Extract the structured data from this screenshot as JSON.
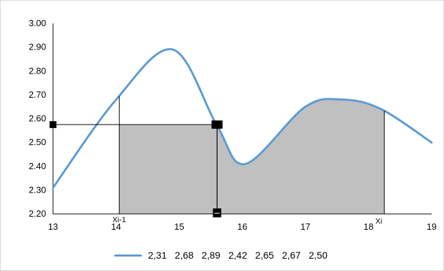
{
  "chart_data": {
    "type": "line",
    "title": "",
    "xlabel": "",
    "ylabel": "",
    "xlim": [
      13,
      19
    ],
    "ylim": [
      2.2,
      3.0
    ],
    "x_ticks": [
      "13",
      "14",
      "15",
      "16",
      "17",
      "18",
      "19"
    ],
    "y_ticks": [
      "2.20",
      "2.30",
      "2.40",
      "2.50",
      "2.60",
      "2.70",
      "2.80",
      "2.90",
      "3.00"
    ],
    "grid": false,
    "legend_position": "bottom",
    "series": [
      {
        "name": "2,31   2,68   2,89   2,42   2,65   2,67   2,50",
        "color": "#5b9bd5",
        "smooth": true,
        "x": [
          13,
          14,
          14.9,
          15.6,
          16.05,
          17,
          17.6,
          18.2,
          19
        ],
        "y": [
          2.31,
          2.68,
          2.89,
          2.57,
          2.41,
          2.65,
          2.68,
          2.64,
          2.5
        ]
      }
    ],
    "shaded_region": {
      "from_x": 14.05,
      "to_x": 18.25,
      "color": "#c0c0c0"
    },
    "annotations": {
      "x_prev": {
        "label": "Xi-1",
        "x": 14.05
      },
      "x_i": {
        "label": "Xi",
        "x": 18.25
      },
      "horizontal_level": {
        "y": 2.575,
        "from_x": 13,
        "to_x": 15.6
      },
      "vertical_mark": {
        "x": 15.6,
        "from_y": 2.2,
        "to_y": 2.575
      }
    }
  }
}
